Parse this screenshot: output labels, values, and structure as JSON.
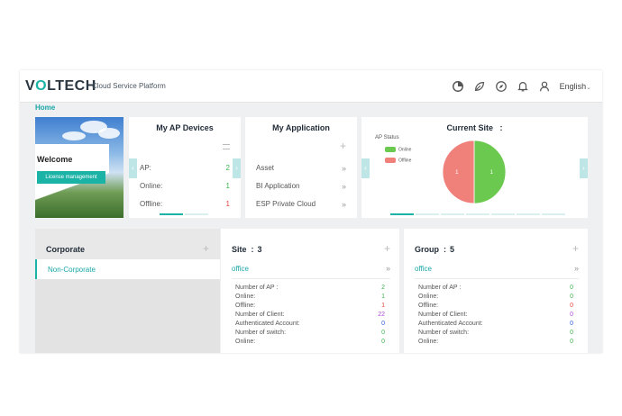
{
  "header": {
    "logo_pre": "V",
    "logo_o": "O",
    "logo_post": "LTECH",
    "platform": "Cloud Service Platform",
    "language": "English",
    "icons": [
      "pie-chart-icon",
      "leaf-icon",
      "compass-icon",
      "bell-icon",
      "user-icon"
    ]
  },
  "breadcrumb": "Home",
  "welcome": {
    "title": "Welcome",
    "button": "License management"
  },
  "ap_devices": {
    "title": "My AP Devices",
    "rows": [
      {
        "label": "AP:",
        "value": "2",
        "color": "#3bb54a"
      },
      {
        "label": "Online:",
        "value": "1",
        "color": "#3bb54a"
      },
      {
        "label": "Offline:",
        "value": "1",
        "color": "#e8463c"
      }
    ]
  },
  "applications": {
    "title": "My Application",
    "items": [
      "Asset",
      "BI Application",
      "ESP Private Cloud"
    ]
  },
  "current_site": {
    "title": "Current Site",
    "separator": ":",
    "chart_title": "AP Status",
    "legend": [
      {
        "name": "Online",
        "color": "#6cc94f"
      },
      {
        "name": "Offline",
        "color": "#f0807a"
      }
    ]
  },
  "chart_data": {
    "type": "pie",
    "title": "AP Status",
    "labels": [
      "Online",
      "Offline"
    ],
    "values": [
      1,
      1
    ],
    "colors": [
      "#6cc94f",
      "#f0807a"
    ],
    "legend_position": "top-left"
  },
  "corporate": {
    "title": "Corporate",
    "items": [
      "Non-Corporate"
    ]
  },
  "site_stats": {
    "title": "Site",
    "separator": ":",
    "count": "3",
    "name": "office",
    "rows": [
      {
        "label": "Number of AP :",
        "value": "2",
        "color": "#3bb54a"
      },
      {
        "label": "Online:",
        "value": "1",
        "color": "#3bb54a"
      },
      {
        "label": "Offline:",
        "value": "1",
        "color": "#e8463c"
      },
      {
        "label": "Number of Client:",
        "value": "22",
        "color": "#b04ad6"
      },
      {
        "label": "Authenticated Account:",
        "value": "0",
        "color": "#2b5fd9"
      },
      {
        "label": "Number of switch:",
        "value": "0",
        "color": "#3bb54a"
      },
      {
        "label": "Online:",
        "value": "0",
        "color": "#3bb54a"
      }
    ]
  },
  "group_stats": {
    "title": "Group",
    "separator": ":",
    "count": "5",
    "name": "office",
    "rows": [
      {
        "label": "Number of AP :",
        "value": "0",
        "color": "#3bb54a"
      },
      {
        "label": "Online:",
        "value": "0",
        "color": "#3bb54a"
      },
      {
        "label": "Offline:",
        "value": "0",
        "color": "#e8463c"
      },
      {
        "label": "Number of Client:",
        "value": "0",
        "color": "#b04ad6"
      },
      {
        "label": "Authenticated Account:",
        "value": "0",
        "color": "#2b5fd9"
      },
      {
        "label": "Number of switch:",
        "value": "0",
        "color": "#3bb54a"
      },
      {
        "label": "Online:",
        "value": "0",
        "color": "#3bb54a"
      }
    ]
  },
  "accent_color": "#1ab3a6"
}
